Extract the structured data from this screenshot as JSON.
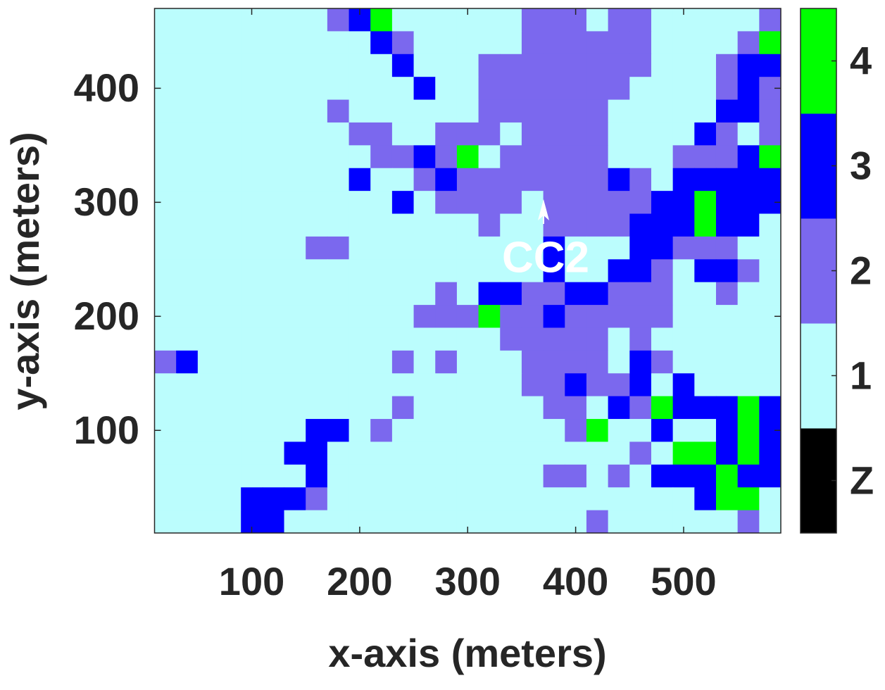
{
  "chart_data": {
    "type": "heatmap",
    "xlabel": "x-axis (meters)",
    "ylabel": "y-axis (meters)",
    "x": [
      20,
      40,
      60,
      80,
      100,
      120,
      140,
      160,
      180,
      200,
      220,
      240,
      260,
      280,
      300,
      320,
      340,
      360,
      380,
      400,
      420,
      440,
      460,
      480,
      500,
      520,
      540,
      560,
      580
    ],
    "y": [
      460,
      440,
      420,
      400,
      380,
      360,
      340,
      320,
      300,
      280,
      260,
      240,
      220,
      200,
      180,
      160,
      140,
      120,
      100,
      80,
      60,
      40,
      20
    ],
    "xlim": [
      10,
      590
    ],
    "ylim": [
      10,
      470
    ],
    "xticks": [
      100,
      200,
      300,
      400,
      500
    ],
    "yticks": [
      100,
      200,
      300,
      400
    ],
    "z": [
      [
        1,
        1,
        1,
        1,
        1,
        1,
        1,
        1,
        2,
        3,
        4,
        1,
        1,
        1,
        1,
        1,
        1,
        2,
        2,
        2,
        1,
        2,
        2,
        1,
        1,
        1,
        1,
        1,
        2
      ],
      [
        1,
        1,
        1,
        1,
        1,
        1,
        1,
        1,
        1,
        1,
        3,
        2,
        1,
        1,
        1,
        1,
        1,
        2,
        2,
        2,
        2,
        2,
        2,
        1,
        1,
        1,
        1,
        2,
        4
      ],
      [
        1,
        1,
        1,
        1,
        1,
        1,
        1,
        1,
        1,
        1,
        1,
        3,
        1,
        1,
        1,
        2,
        2,
        2,
        2,
        2,
        2,
        2,
        2,
        1,
        1,
        1,
        2,
        3,
        3
      ],
      [
        1,
        1,
        1,
        1,
        1,
        1,
        1,
        1,
        1,
        1,
        1,
        1,
        3,
        1,
        1,
        2,
        2,
        2,
        2,
        2,
        2,
        2,
        1,
        1,
        1,
        1,
        2,
        3,
        2
      ],
      [
        1,
        1,
        1,
        1,
        1,
        1,
        1,
        1,
        2,
        1,
        1,
        1,
        1,
        1,
        1,
        2,
        2,
        2,
        2,
        2,
        2,
        1,
        1,
        1,
        1,
        1,
        3,
        3,
        2
      ],
      [
        1,
        1,
        1,
        1,
        1,
        1,
        1,
        1,
        1,
        2,
        2,
        1,
        1,
        2,
        2,
        2,
        1,
        2,
        2,
        2,
        2,
        1,
        1,
        1,
        1,
        3,
        2,
        1,
        2
      ],
      [
        1,
        1,
        1,
        1,
        1,
        1,
        1,
        1,
        1,
        1,
        2,
        2,
        3,
        2,
        4,
        1,
        2,
        2,
        2,
        2,
        2,
        1,
        1,
        1,
        2,
        2,
        2,
        3,
        4
      ],
      [
        1,
        1,
        1,
        1,
        1,
        1,
        1,
        1,
        1,
        3,
        1,
        1,
        2,
        3,
        2,
        2,
        2,
        2,
        2,
        2,
        2,
        3,
        2,
        1,
        3,
        3,
        3,
        3,
        3
      ],
      [
        1,
        1,
        1,
        1,
        1,
        1,
        1,
        1,
        1,
        1,
        1,
        3,
        1,
        2,
        2,
        2,
        2,
        1,
        2,
        2,
        2,
        2,
        2,
        3,
        3,
        4,
        3,
        3,
        3
      ],
      [
        1,
        1,
        1,
        1,
        1,
        1,
        1,
        1,
        1,
        1,
        1,
        1,
        1,
        1,
        1,
        2,
        1,
        1,
        2,
        2,
        2,
        2,
        3,
        3,
        3,
        4,
        3,
        3,
        1
      ],
      [
        1,
        1,
        1,
        1,
        1,
        1,
        1,
        2,
        2,
        1,
        1,
        1,
        1,
        1,
        1,
        1,
        1,
        1,
        3,
        1,
        1,
        1,
        3,
        3,
        2,
        2,
        2,
        1,
        1
      ],
      [
        1,
        1,
        1,
        1,
        1,
        1,
        1,
        1,
        1,
        1,
        1,
        1,
        1,
        1,
        1,
        1,
        1,
        1,
        3,
        1,
        1,
        3,
        3,
        2,
        1,
        3,
        3,
        2,
        1
      ],
      [
        1,
        1,
        1,
        1,
        1,
        1,
        1,
        1,
        1,
        1,
        1,
        1,
        1,
        2,
        1,
        3,
        3,
        2,
        2,
        3,
        3,
        2,
        2,
        2,
        1,
        1,
        2,
        1,
        1
      ],
      [
        1,
        1,
        1,
        1,
        1,
        1,
        1,
        1,
        1,
        1,
        1,
        1,
        2,
        2,
        2,
        4,
        2,
        2,
        3,
        2,
        2,
        2,
        2,
        2,
        1,
        1,
        1,
        1,
        1
      ],
      [
        1,
        1,
        1,
        1,
        1,
        1,
        1,
        1,
        1,
        1,
        1,
        1,
        1,
        1,
        1,
        1,
        2,
        2,
        2,
        2,
        2,
        1,
        2,
        1,
        1,
        1,
        1,
        1,
        1
      ],
      [
        2,
        3,
        1,
        1,
        1,
        1,
        1,
        1,
        1,
        1,
        1,
        2,
        1,
        2,
        1,
        1,
        1,
        2,
        2,
        2,
        2,
        1,
        3,
        2,
        1,
        1,
        1,
        1,
        1
      ],
      [
        1,
        1,
        1,
        1,
        1,
        1,
        1,
        1,
        1,
        1,
        1,
        1,
        1,
        1,
        1,
        1,
        1,
        2,
        2,
        3,
        2,
        2,
        3,
        1,
        3,
        1,
        1,
        1,
        1
      ],
      [
        1,
        1,
        1,
        1,
        1,
        1,
        1,
        1,
        1,
        1,
        1,
        2,
        1,
        1,
        1,
        1,
        1,
        1,
        2,
        2,
        1,
        3,
        2,
        4,
        3,
        3,
        3,
        4,
        3
      ],
      [
        1,
        1,
        1,
        1,
        1,
        1,
        1,
        3,
        3,
        1,
        2,
        1,
        1,
        1,
        1,
        1,
        1,
        1,
        1,
        2,
        4,
        1,
        1,
        3,
        1,
        1,
        3,
        4,
        3
      ],
      [
        1,
        1,
        1,
        1,
        1,
        1,
        3,
        3,
        1,
        1,
        1,
        1,
        1,
        1,
        1,
        1,
        1,
        1,
        1,
        1,
        1,
        1,
        2,
        1,
        4,
        4,
        3,
        4,
        3
      ],
      [
        1,
        1,
        1,
        1,
        1,
        1,
        1,
        3,
        1,
        1,
        1,
        1,
        1,
        1,
        1,
        1,
        1,
        1,
        2,
        2,
        1,
        2,
        1,
        3,
        3,
        3,
        4,
        3,
        3
      ],
      [
        1,
        1,
        1,
        1,
        3,
        3,
        3,
        2,
        1,
        1,
        1,
        1,
        1,
        1,
        1,
        1,
        1,
        1,
        1,
        1,
        1,
        1,
        1,
        1,
        1,
        3,
        4,
        4,
        1
      ],
      [
        1,
        1,
        1,
        1,
        3,
        3,
        1,
        1,
        1,
        1,
        1,
        1,
        1,
        1,
        1,
        1,
        1,
        1,
        1,
        1,
        2,
        1,
        1,
        1,
        1,
        1,
        1,
        2,
        1
      ]
    ],
    "colormap": [
      "#000000",
      "#bbfdfd",
      "#7b68ee",
      "#0000ff",
      "#00ff00"
    ],
    "clim": [
      -0.5,
      4.5
    ],
    "cticks": [
      {
        "value": 0,
        "label": "Z"
      },
      1,
      2,
      3,
      4
    ],
    "annotation": "CC2"
  }
}
